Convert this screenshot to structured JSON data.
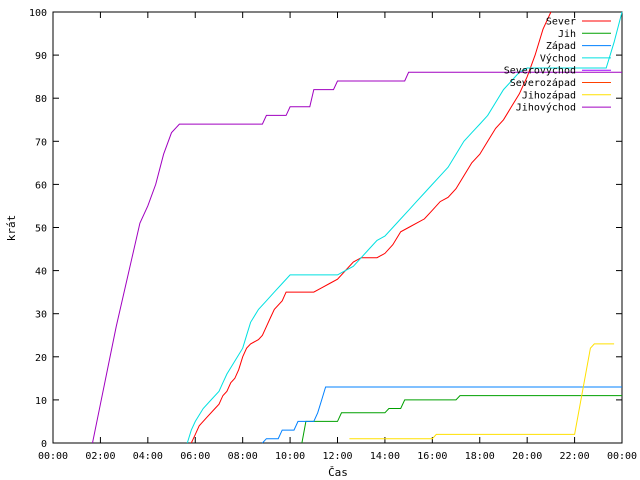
{
  "chart_data": {
    "type": "line",
    "title": "",
    "xlabel": "Čas",
    "ylabel": "krát",
    "xlim": [
      "00:00",
      "24:00"
    ],
    "ylim": [
      0,
      100
    ],
    "grid": false,
    "legend_position": "top-right",
    "x_ticks": [
      "00:00",
      "02:00",
      "04:00",
      "06:00",
      "08:00",
      "10:00",
      "12:00",
      "14:00",
      "16:00",
      "18:00",
      "20:00",
      "22:00",
      "00:00"
    ],
    "y_ticks": [
      0,
      10,
      20,
      30,
      40,
      50,
      60,
      70,
      80,
      90,
      100
    ],
    "series": [
      {
        "name": "Sever",
        "color": "#ff0000",
        "points": [
          [
            "05:50",
            0
          ],
          [
            "06:00",
            2
          ],
          [
            "06:10",
            4
          ],
          [
            "06:30",
            6
          ],
          [
            "06:50",
            8
          ],
          [
            "07:00",
            9
          ],
          [
            "07:10",
            11
          ],
          [
            "07:20",
            12
          ],
          [
            "07:30",
            14
          ],
          [
            "07:40",
            15
          ],
          [
            "07:50",
            17
          ],
          [
            "08:00",
            20
          ],
          [
            "08:10",
            22
          ],
          [
            "08:20",
            23
          ],
          [
            "08:40",
            24
          ],
          [
            "08:50",
            25
          ],
          [
            "09:00",
            27
          ],
          [
            "09:10",
            29
          ],
          [
            "09:20",
            31
          ],
          [
            "09:40",
            33
          ],
          [
            "09:50",
            35
          ],
          [
            "10:30",
            35
          ],
          [
            "11:00",
            35
          ],
          [
            "11:20",
            36
          ],
          [
            "11:40",
            37
          ],
          [
            "12:00",
            38
          ],
          [
            "12:20",
            40
          ],
          [
            "12:40",
            42
          ],
          [
            "13:00",
            43
          ],
          [
            "13:40",
            43
          ],
          [
            "14:00",
            44
          ],
          [
            "14:20",
            46
          ],
          [
            "14:40",
            49
          ],
          [
            "15:00",
            50
          ],
          [
            "15:20",
            51
          ],
          [
            "15:40",
            52
          ],
          [
            "16:00",
            54
          ],
          [
            "16:20",
            56
          ],
          [
            "16:40",
            57
          ],
          [
            "17:00",
            59
          ],
          [
            "17:20",
            62
          ],
          [
            "17:40",
            65
          ],
          [
            "18:00",
            67
          ],
          [
            "18:20",
            70
          ],
          [
            "18:40",
            73
          ],
          [
            "19:00",
            75
          ],
          [
            "19:20",
            78
          ],
          [
            "19:40",
            81
          ],
          [
            "20:00",
            85
          ],
          [
            "20:20",
            90
          ],
          [
            "20:40",
            96
          ],
          [
            "21:00",
            100
          ]
        ]
      },
      {
        "name": "Jih",
        "color": "#00a000",
        "points": [
          [
            "10:30",
            0
          ],
          [
            "10:40",
            5
          ],
          [
            "12:00",
            5
          ],
          [
            "12:10",
            7
          ],
          [
            "14:00",
            7
          ],
          [
            "14:10",
            8
          ],
          [
            "14:40",
            8
          ],
          [
            "14:50",
            10
          ],
          [
            "17:00",
            10
          ],
          [
            "17:10",
            11
          ],
          [
            "24:00",
            11
          ]
        ]
      },
      {
        "name": "Západ",
        "color": "#0080ff",
        "points": [
          [
            "08:50",
            0
          ],
          [
            "09:00",
            1
          ],
          [
            "09:30",
            1
          ],
          [
            "09:40",
            3
          ],
          [
            "10:10",
            3
          ],
          [
            "10:20",
            5
          ],
          [
            "11:00",
            5
          ],
          [
            "11:10",
            7
          ],
          [
            "11:20",
            10
          ],
          [
            "11:30",
            13
          ],
          [
            "24:00",
            13
          ]
        ]
      },
      {
        "name": "Východ",
        "color": "#00e0e0",
        "points": [
          [
            "05:40",
            0
          ],
          [
            "05:50",
            3
          ],
          [
            "06:00",
            5
          ],
          [
            "06:20",
            8
          ],
          [
            "06:40",
            10
          ],
          [
            "07:00",
            12
          ],
          [
            "07:10",
            14
          ],
          [
            "07:20",
            16
          ],
          [
            "07:40",
            19
          ],
          [
            "08:00",
            22
          ],
          [
            "08:10",
            25
          ],
          [
            "08:20",
            28
          ],
          [
            "08:40",
            31
          ],
          [
            "09:00",
            33
          ],
          [
            "09:20",
            35
          ],
          [
            "09:40",
            37
          ],
          [
            "10:00",
            39
          ],
          [
            "12:00",
            39
          ],
          [
            "12:20",
            40
          ],
          [
            "12:40",
            41
          ],
          [
            "13:00",
            43
          ],
          [
            "13:20",
            45
          ],
          [
            "13:40",
            47
          ],
          [
            "14:00",
            48
          ],
          [
            "14:20",
            50
          ],
          [
            "14:40",
            52
          ],
          [
            "15:00",
            54
          ],
          [
            "15:20",
            56
          ],
          [
            "15:40",
            58
          ],
          [
            "16:00",
            60
          ],
          [
            "16:20",
            62
          ],
          [
            "16:40",
            64
          ],
          [
            "17:00",
            67
          ],
          [
            "17:20",
            70
          ],
          [
            "17:40",
            72
          ],
          [
            "18:00",
            74
          ],
          [
            "18:20",
            76
          ],
          [
            "18:40",
            79
          ],
          [
            "19:00",
            82
          ],
          [
            "19:20",
            84
          ],
          [
            "19:40",
            86
          ],
          [
            "20:00",
            87
          ],
          [
            "23:20",
            87
          ],
          [
            "23:40",
            93
          ],
          [
            "24:00",
            100
          ]
        ]
      },
      {
        "name": "Severovýchod",
        "color": "#a000ff",
        "points": []
      },
      {
        "name": "Severozápad",
        "color": "#ff4000",
        "points": []
      },
      {
        "name": "Jihozápad",
        "color": "#ffe000",
        "points": [
          [
            "12:30",
            1
          ],
          [
            "16:00",
            1
          ],
          [
            "16:10",
            2
          ],
          [
            "22:00",
            2
          ],
          [
            "22:20",
            12
          ],
          [
            "22:40",
            22
          ],
          [
            "22:50",
            23
          ],
          [
            "23:40",
            23
          ]
        ]
      },
      {
        "name": "Jihovýchod",
        "color": "#a000c0",
        "points": [
          [
            "01:40",
            0
          ],
          [
            "02:00",
            9
          ],
          [
            "02:20",
            18
          ],
          [
            "02:40",
            27
          ],
          [
            "03:00",
            35
          ],
          [
            "03:20",
            43
          ],
          [
            "03:40",
            51
          ],
          [
            "04:00",
            55
          ],
          [
            "04:20",
            60
          ],
          [
            "04:40",
            67
          ],
          [
            "05:00",
            72
          ],
          [
            "05:20",
            74
          ],
          [
            "08:50",
            74
          ],
          [
            "09:00",
            76
          ],
          [
            "09:50",
            76
          ],
          [
            "10:00",
            78
          ],
          [
            "10:50",
            78
          ],
          [
            "11:00",
            82
          ],
          [
            "11:50",
            82
          ],
          [
            "12:00",
            84
          ],
          [
            "14:50",
            84
          ],
          [
            "15:00",
            86
          ],
          [
            "24:00",
            86
          ]
        ]
      }
    ]
  }
}
